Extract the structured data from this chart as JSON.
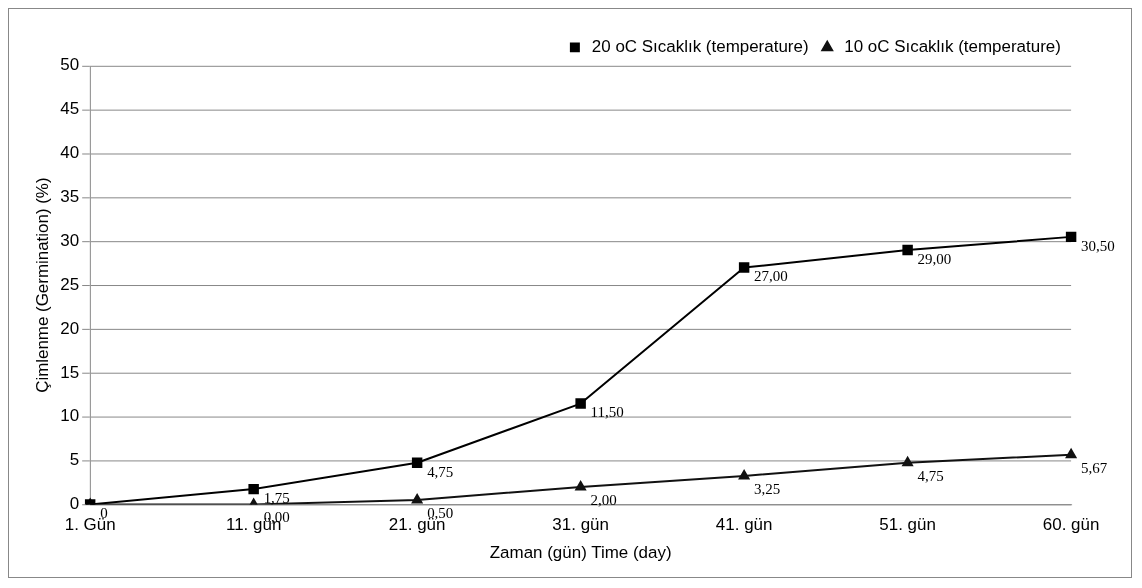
{
  "chart_data": {
    "type": "line",
    "xlabel": "Zaman (gün) Time (day)",
    "ylabel": "Çimlenme (Germination) (%)",
    "categories": [
      "1. Gün",
      "11. gün",
      "21. gün",
      "31. gün",
      "41. gün",
      "51. gün",
      "60. gün"
    ],
    "ylim": [
      0,
      50
    ],
    "yticks": [
      0,
      5,
      10,
      15,
      20,
      25,
      30,
      35,
      40,
      45,
      50
    ],
    "grid": "y",
    "legend": "top right",
    "line_style": "solid",
    "series": [
      {
        "name": "20 oC Sıcaklık (temperature)",
        "color": "#000000",
        "marker": "square",
        "values": [
          0,
          1.75,
          4.75,
          11.5,
          27,
          29,
          30.5
        ],
        "value_labels": [
          "0",
          "1,75",
          "4,75",
          "11,50",
          "27,00",
          "29,00",
          "30,50"
        ]
      },
      {
        "name": "10 oC Sıcaklık (temperature)",
        "color": "#111111",
        "marker": "triangle",
        "values": [
          0,
          0,
          0.5,
          2,
          3.25,
          4.75,
          5.67
        ],
        "value_labels": [
          null,
          "0,00",
          "0,50",
          "2,00",
          "3,25",
          "4,75",
          "5,67"
        ]
      }
    ]
  }
}
